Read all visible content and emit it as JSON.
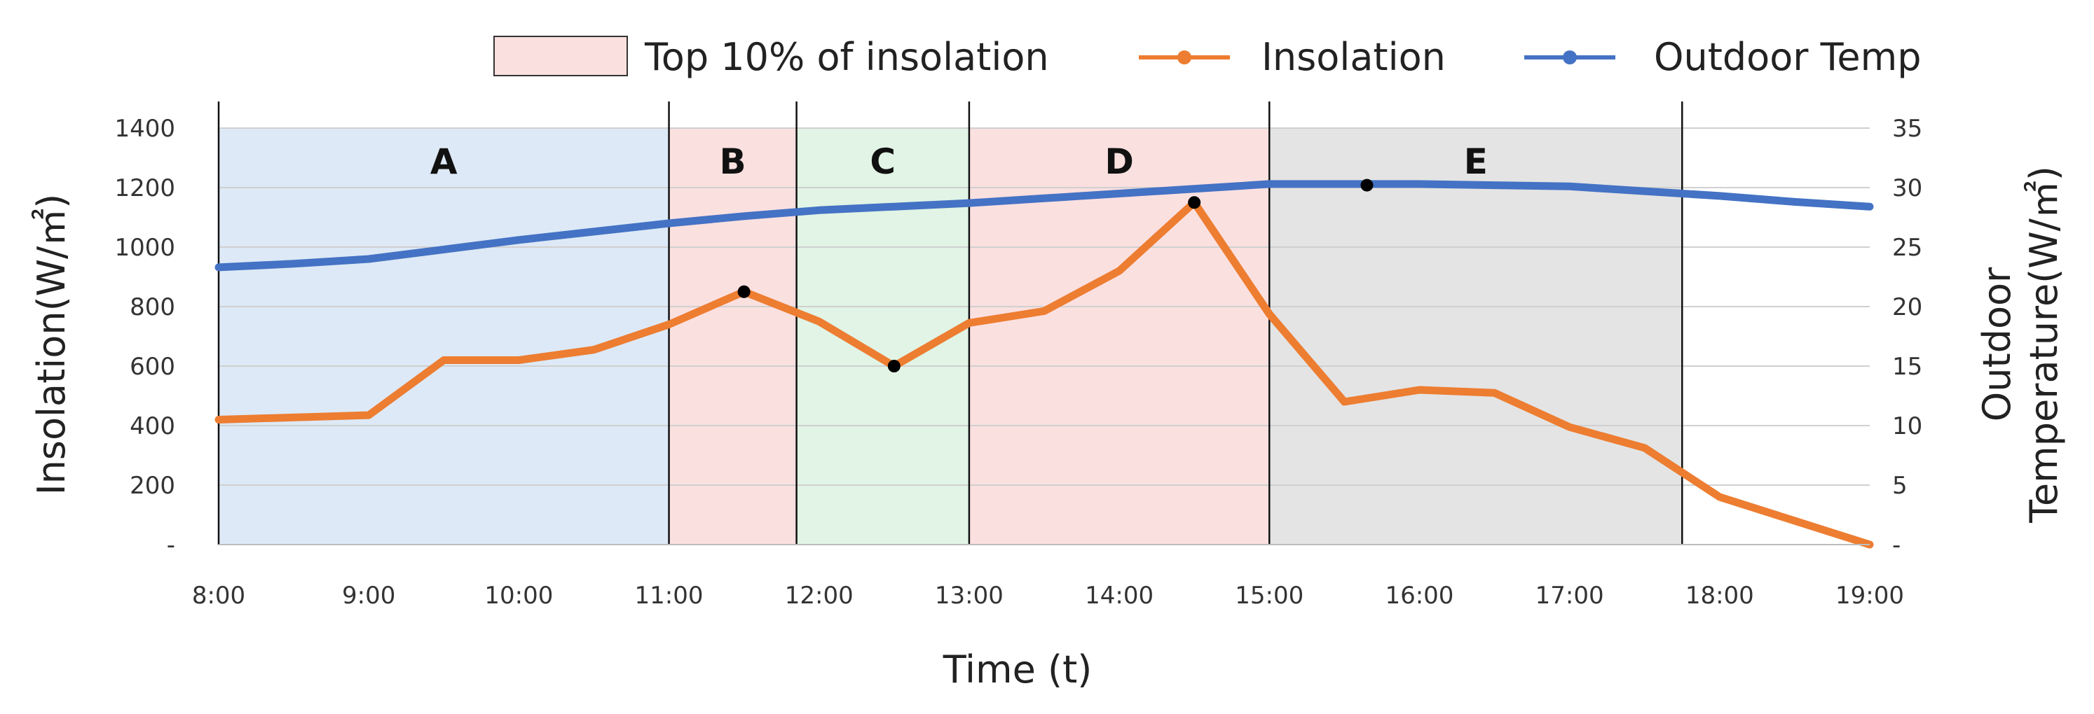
{
  "chart_data": {
    "type": "line",
    "x": [
      "8:00",
      "8:30",
      "9:00",
      "9:30",
      "10:00",
      "10:30",
      "11:00",
      "11:30",
      "12:00",
      "12:30",
      "13:00",
      "13:30",
      "14:00",
      "14:30",
      "15:00",
      "15:30",
      "16:00",
      "16:30",
      "17:00",
      "17:30",
      "18:00",
      "18:30",
      "19:00"
    ],
    "xlabel": "Time (t)",
    "ylabel": "Insolation(W/㎡)",
    "y2label_line1": "Outdoor",
    "y2label_line2": "Temperature(W/㎡)",
    "ylim": [
      0,
      1400
    ],
    "y2lim": [
      0,
      35
    ],
    "yticks": [
      "-",
      "200",
      "400",
      "600",
      "800",
      "1000",
      "1200",
      "1400"
    ],
    "y2ticks": [
      "-",
      "5",
      "10",
      "15",
      "20",
      "25",
      "30",
      "35"
    ],
    "xticks": [
      "8:00",
      "9:00",
      "10:00",
      "11:00",
      "12:00",
      "13:00",
      "14:00",
      "15:00",
      "16:00",
      "17:00",
      "18:00",
      "19:00"
    ],
    "series": [
      {
        "name": "Insolation",
        "axis": "left",
        "color": "#ed7d31",
        "points": [
          [
            0,
            420
          ],
          [
            1.0,
            435
          ],
          [
            1.5,
            620
          ],
          [
            2.0,
            620
          ],
          [
            2.5,
            655
          ],
          [
            3.0,
            740
          ],
          [
            3.5,
            850
          ],
          [
            4.0,
            750
          ],
          [
            4.5,
            600
          ],
          [
            5.0,
            745
          ],
          [
            5.5,
            785
          ],
          [
            6.0,
            920
          ],
          [
            6.5,
            1150
          ],
          [
            7.0,
            775
          ],
          [
            7.5,
            480
          ],
          [
            8.0,
            520
          ],
          [
            8.5,
            510
          ],
          [
            9.0,
            395
          ],
          [
            9.5,
            325
          ],
          [
            10.0,
            160
          ],
          [
            10.5,
            80
          ],
          [
            11.0,
            0
          ]
        ]
      },
      {
        "name": "Outdoor Temp",
        "axis": "right",
        "color": "#4472c4",
        "points": [
          [
            0,
            23.3
          ],
          [
            0.5,
            23.6
          ],
          [
            1.0,
            24.0
          ],
          [
            1.5,
            24.8
          ],
          [
            2.0,
            25.6
          ],
          [
            2.5,
            26.3
          ],
          [
            3.0,
            27.0
          ],
          [
            3.5,
            27.6
          ],
          [
            4.0,
            28.1
          ],
          [
            4.5,
            28.4
          ],
          [
            5.0,
            28.7
          ],
          [
            5.5,
            29.1
          ],
          [
            6.0,
            29.5
          ],
          [
            6.5,
            29.9
          ],
          [
            7.0,
            30.3
          ],
          [
            7.5,
            30.3
          ],
          [
            8.0,
            30.3
          ],
          [
            8.5,
            30.2
          ],
          [
            9.0,
            30.1
          ],
          [
            9.5,
            29.7
          ],
          [
            10.0,
            29.3
          ],
          [
            10.5,
            28.8
          ],
          [
            11.0,
            28.4
          ]
        ]
      }
    ],
    "markers": [
      {
        "series": "Insolation",
        "x": 3.5,
        "y": 850
      },
      {
        "series": "Insolation",
        "x": 4.5,
        "y": 600
      },
      {
        "series": "Insolation",
        "x": 6.5,
        "y": 1150
      },
      {
        "series": "Outdoor Temp",
        "x": 7.65,
        "y": 30.2
      }
    ],
    "regions": [
      {
        "label": "A",
        "x0": 0,
        "x1": 3.0,
        "color": "#dde9f6",
        "top10": false
      },
      {
        "label": "B",
        "x0": 3.0,
        "x1": 3.85,
        "color": "#fbe0e0",
        "top10": true
      },
      {
        "label": "C",
        "x0": 3.85,
        "x1": 5.0,
        "color": "#e1f4e5",
        "top10": false
      },
      {
        "label": "D",
        "x0": 5.0,
        "x1": 7.0,
        "color": "#fbe0e0",
        "top10": true
      },
      {
        "label": "E",
        "x0": 7.0,
        "x1": 9.75,
        "color": "#e4e4e4",
        "top10": false
      }
    ],
    "boundaries": [
      0,
      3.0,
      3.85,
      5.0,
      7.0,
      9.75
    ],
    "grid": true,
    "legend_position": "top"
  },
  "legend": {
    "top10_label": "Top 10% of insolation",
    "top10_color": "#fbe0e0",
    "insolation_label": "Insolation",
    "temp_label": "Outdoor Temp"
  }
}
